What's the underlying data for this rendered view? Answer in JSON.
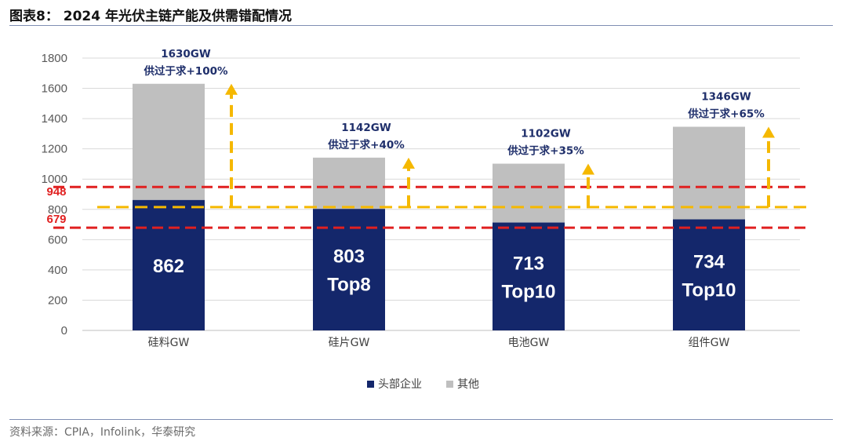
{
  "figure": {
    "title": "图表8： 2024 年光伏主链产能及供需错配情况",
    "source": "资料来源：CPIA，Infolink，华泰研究"
  },
  "chart_data": {
    "type": "bar",
    "stacked": true,
    "categories": [
      "硅料GW",
      "硅片GW",
      "电池GW",
      "组件GW"
    ],
    "series": [
      {
        "name": "头部企业",
        "values": [
          862,
          803,
          713,
          734
        ],
        "color": "#14276b"
      },
      {
        "name": "其他",
        "values": [
          768,
          339,
          389,
          612
        ],
        "color": "#bfbfbf"
      }
    ],
    "ylim": [
      0,
      1800
    ],
    "yticks": [
      0,
      200,
      400,
      600,
      800,
      1000,
      1200,
      1400,
      1600,
      1800
    ],
    "grid": true,
    "legend_position": "bottom",
    "bar_labels": [
      [
        "862"
      ],
      [
        "803",
        "Top8"
      ],
      [
        "713",
        "Top10"
      ],
      [
        "734",
        "Top10"
      ]
    ],
    "annotations": [
      {
        "total": "1630GW",
        "note": "供过于求+100%"
      },
      {
        "total": "1142GW",
        "note": "供过于求+40%"
      },
      {
        "total": "1102GW",
        "note": "供过于求+35%"
      },
      {
        "total": "1346GW",
        "note": "供过于求+65%"
      }
    ],
    "reference_lines": [
      {
        "value": 948,
        "label": "948",
        "color": "#e02020",
        "style": "dashed"
      },
      {
        "value": 679,
        "label": "679",
        "color": "#e02020",
        "style": "dashed"
      },
      {
        "value": 815,
        "label": "",
        "color": "#f5b800",
        "style": "dashed"
      }
    ],
    "arrow_color": "#f5b800"
  }
}
